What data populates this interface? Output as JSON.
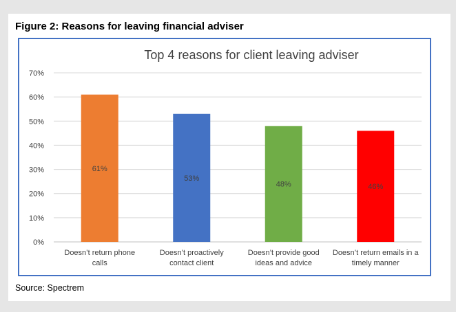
{
  "figure": {
    "title": "Figure 2: Reasons for leaving financial adviser",
    "source": "Source: Spectrem"
  },
  "chart_data": {
    "type": "bar",
    "title": "Top 4 reasons for client leaving adviser",
    "xlabel": "",
    "ylabel": "",
    "ylim": [
      0,
      70
    ],
    "yticks": [
      "0%",
      "10%",
      "20%",
      "30%",
      "40%",
      "50%",
      "60%",
      "70%"
    ],
    "grid": true,
    "legend": "none",
    "categories": [
      [
        "Doesn’t return phone",
        "calls"
      ],
      [
        "Doesn’t proactively",
        "contact client"
      ],
      [
        "Doesn’t provide good",
        "ideas and advice"
      ],
      [
        "Doesn’t return emails in a",
        "timely manner"
      ]
    ],
    "values": [
      61,
      53,
      48,
      46
    ],
    "data_labels": [
      "61%",
      "53%",
      "48%",
      "46%"
    ],
    "colors": [
      "#ed7d31",
      "#4472c4",
      "#70ad47",
      "#ff0000"
    ],
    "grid_color": "#d9d9d9",
    "text_color": "#404040"
  }
}
